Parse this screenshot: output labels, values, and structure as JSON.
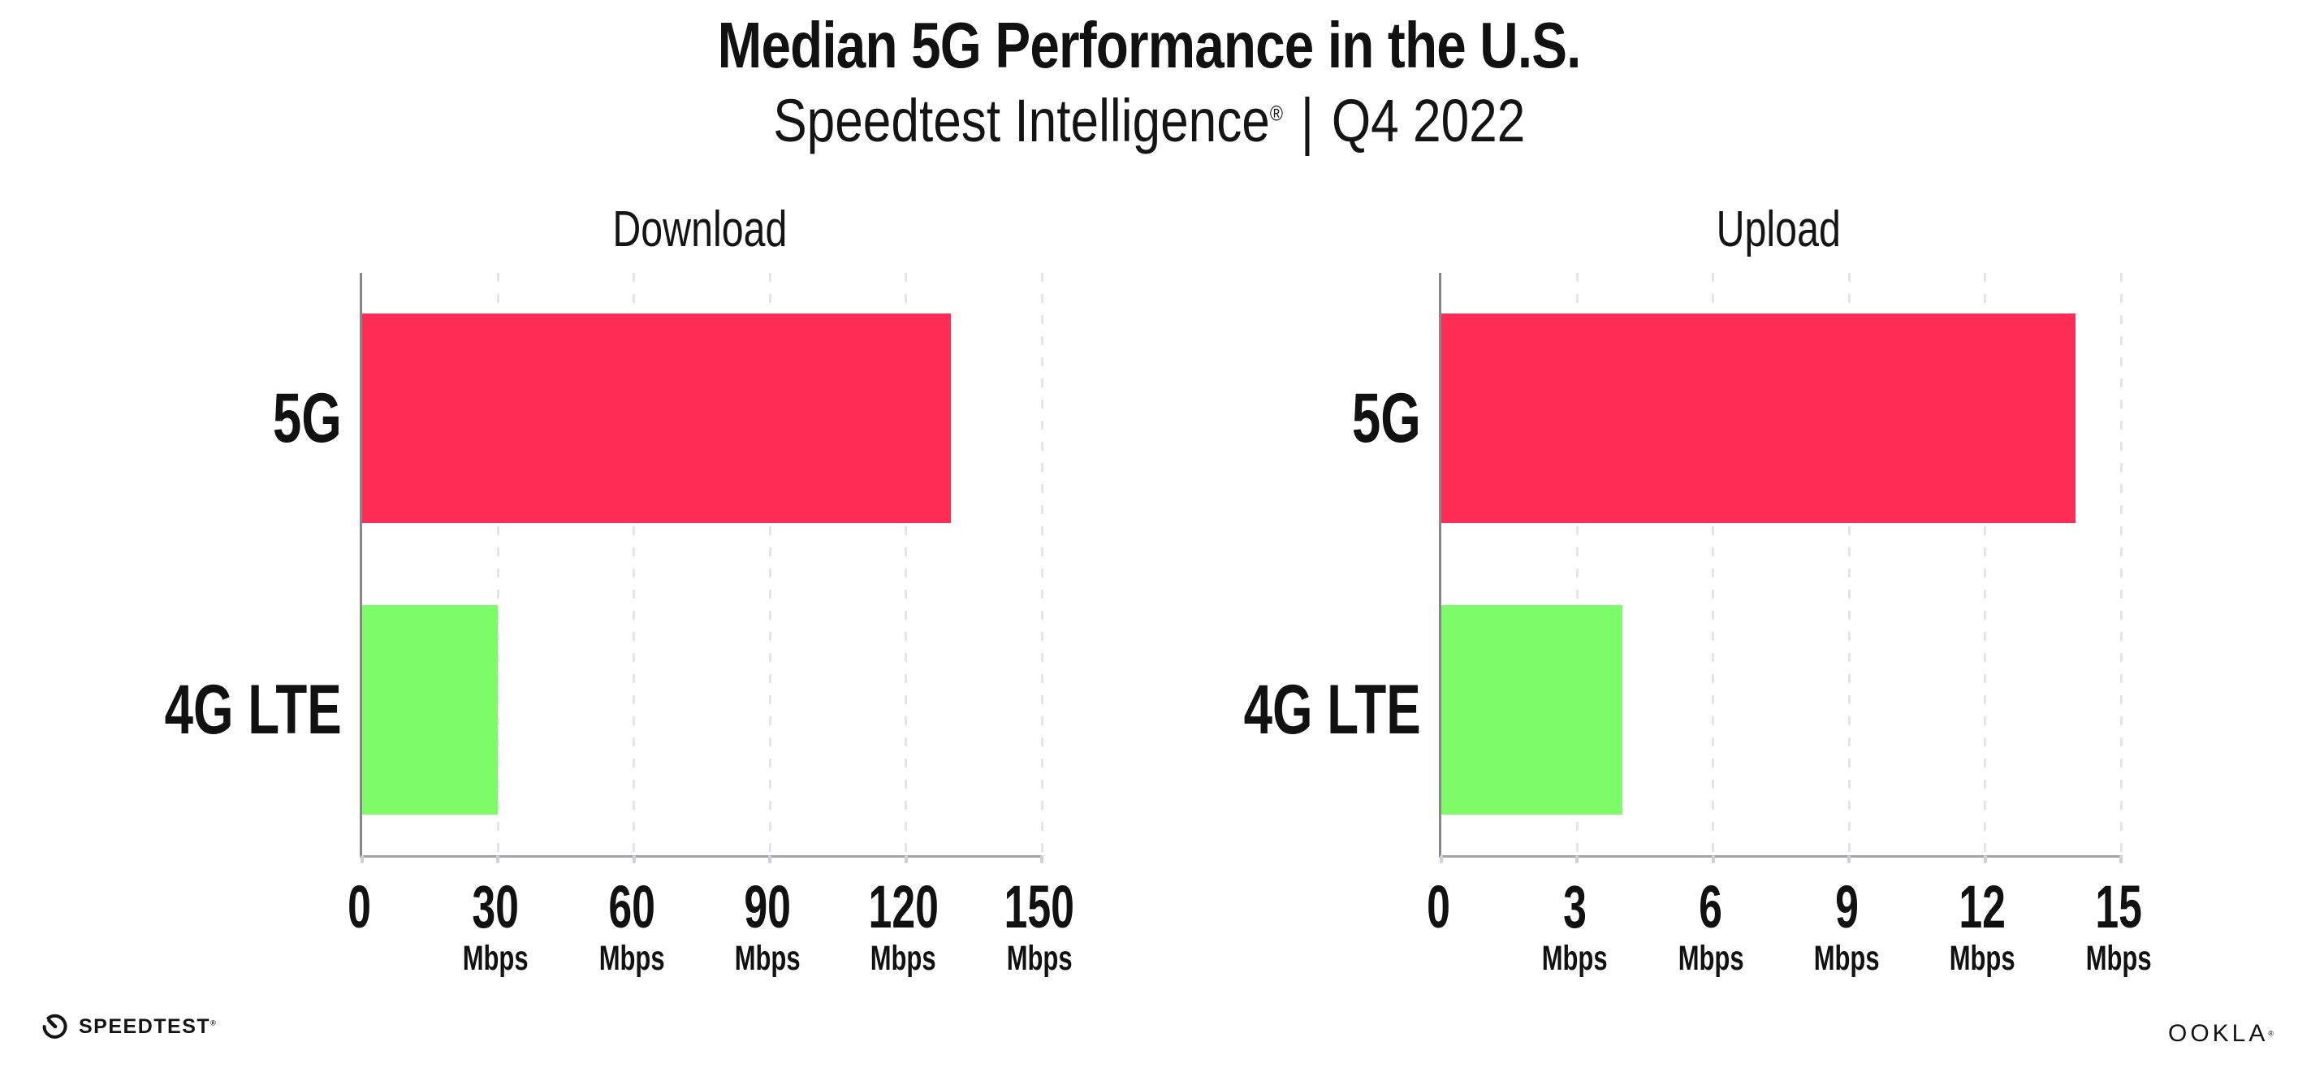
{
  "header": {
    "title": "Median 5G Performance in the U.S.",
    "product": "Speedtest Intelligence",
    "reg": "®",
    "separator": "|",
    "period": "Q4 2022"
  },
  "chart_data": [
    {
      "type": "bar",
      "orientation": "horizontal",
      "title": "Download",
      "categories": [
        "5G",
        "4G LTE"
      ],
      "values": [
        130,
        30
      ],
      "unit": "Mbps",
      "xlabel": "",
      "ylabel": "",
      "xlim": [
        0,
        150
      ],
      "xticks": [
        0,
        30,
        60,
        90,
        120,
        150
      ],
      "series_colors": [
        "#ff2d55",
        "#7dfc68"
      ],
      "grid": "vertical-dashed",
      "legend": "none"
    },
    {
      "type": "bar",
      "orientation": "horizontal",
      "title": "Upload",
      "categories": [
        "5G",
        "4G LTE"
      ],
      "values": [
        14,
        4
      ],
      "unit": "Mbps",
      "xlabel": "",
      "ylabel": "",
      "xlim": [
        0,
        15
      ],
      "xticks": [
        0,
        3,
        6,
        9,
        12,
        15
      ],
      "series_colors": [
        "#ff2d55",
        "#7dfc68"
      ],
      "grid": "vertical-dashed",
      "legend": "none"
    }
  ],
  "footer": {
    "speedtest_label": "SPEEDTEST",
    "speedtest_reg": "®",
    "speedtest_icon": "speedtest-gauge-icon",
    "ookla_label": "OOKLA",
    "ookla_reg": "®"
  },
  "colors": {
    "bar_5g": "#ff2d55",
    "bar_4g_lte": "#7dfc68",
    "gridline": "#e4e4ee",
    "axis_x": "#a2a2a7",
    "axis_y": "#86868b",
    "text": "#111111",
    "background": "#ffffff"
  }
}
